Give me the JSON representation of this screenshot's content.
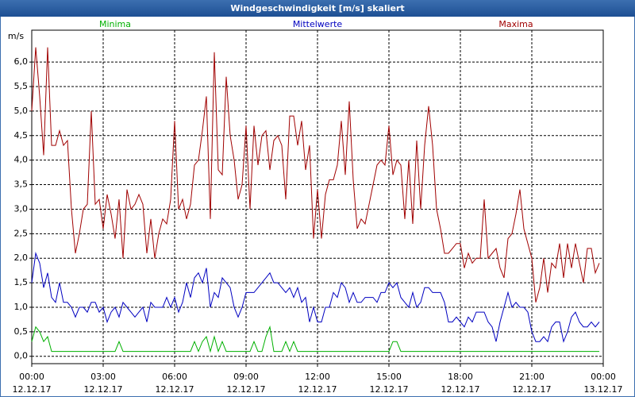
{
  "chart_data": {
    "type": "line",
    "title": "Windgeschwindigkeit [m/s] skaliert",
    "y_unit": "m/s",
    "x": [
      0,
      10,
      20,
      30,
      40,
      50,
      60,
      70,
      80,
      90,
      100,
      110,
      120,
      130,
      140,
      150,
      160,
      170,
      180,
      190,
      200,
      210,
      220,
      230,
      240,
      250,
      260,
      270,
      280,
      290,
      300,
      310,
      320,
      330,
      340,
      350,
      360,
      370,
      380,
      390,
      400,
      410,
      420,
      430,
      440,
      450,
      460,
      470,
      480,
      490,
      500,
      510,
      520,
      530,
      540,
      550,
      560,
      570,
      580,
      590,
      600,
      610,
      620,
      630,
      640,
      650,
      660,
      670,
      680,
      690,
      700,
      710,
      720,
      730,
      740,
      750,
      760,
      770,
      780,
      790,
      800,
      810,
      820,
      830,
      840,
      850,
      860,
      870,
      880,
      890,
      900,
      910,
      920,
      930,
      940,
      950,
      960,
      970,
      980,
      990,
      1000,
      1010,
      1020,
      1030,
      1040,
      1050,
      1060,
      1070,
      1080,
      1090,
      1100,
      1110,
      1120,
      1130,
      1140,
      1150,
      1160,
      1170,
      1180,
      1190,
      1200,
      1210,
      1220,
      1230,
      1240,
      1250,
      1260,
      1270,
      1280,
      1290,
      1300,
      1310,
      1320,
      1330,
      1340,
      1350,
      1360,
      1370,
      1380,
      1390,
      1400,
      1410,
      1420,
      1430
    ],
    "series": [
      {
        "name": "Minima",
        "color": "#00b000",
        "values": [
          0.3,
          0.6,
          0.5,
          0.3,
          0.4,
          0.1,
          0.1,
          0.1,
          0.1,
          0.1,
          0.1,
          0.1,
          0.1,
          0.1,
          0.1,
          0.1,
          0.1,
          0.1,
          0.1,
          0.1,
          0.1,
          0.1,
          0.3,
          0.1,
          0.1,
          0.1,
          0.1,
          0.1,
          0.1,
          0.1,
          0.1,
          0.1,
          0.1,
          0.1,
          0.1,
          0.1,
          0.1,
          0.1,
          0.1,
          0.1,
          0.1,
          0.3,
          0.1,
          0.3,
          0.4,
          0.1,
          0.4,
          0.1,
          0.3,
          0.1,
          0.1,
          0.1,
          0.1,
          0.1,
          0.1,
          0.1,
          0.3,
          0.1,
          0.1,
          0.4,
          0.6,
          0.1,
          0.1,
          0.1,
          0.3,
          0.1,
          0.3,
          0.1,
          0.1,
          0.1,
          0.1,
          0.1,
          0.1,
          0.1,
          0.1,
          0.1,
          0.1,
          0.1,
          0.1,
          0.1,
          0.1,
          0.1,
          0.1,
          0.1,
          0.1,
          0.1,
          0.1,
          0.1,
          0.1,
          0.1,
          0.1,
          0.3,
          0.3,
          0.1,
          0.1,
          0.1,
          0.1,
          0.1,
          0.1,
          0.1,
          0.1,
          0.1,
          0.1,
          0.1,
          0.1,
          0.1,
          0.1,
          0.1,
          0.1,
          0.1,
          0.1,
          0.1,
          0.1,
          0.1,
          0.1,
          0.1,
          0.1,
          0.1,
          0.1,
          0.1,
          0.1,
          0.1,
          0.1,
          0.1,
          0.1,
          0.1,
          0.1,
          0.1,
          0.1,
          0.1,
          0.1,
          0.1,
          0.1,
          0.1,
          0.1,
          0.1,
          0.1,
          0.1,
          0.1,
          0.1,
          0.1,
          0.1,
          0.1,
          0.1
        ]
      },
      {
        "name": "Mittelwerte",
        "color": "#0000c0",
        "values": [
          1.5,
          2.1,
          1.9,
          1.4,
          1.7,
          1.2,
          1.1,
          1.5,
          1.1,
          1.1,
          1.0,
          0.8,
          1.0,
          1.0,
          0.9,
          1.1,
          1.1,
          0.9,
          1.0,
          0.7,
          0.9,
          1.0,
          0.8,
          1.1,
          1.0,
          0.9,
          0.8,
          0.9,
          1.0,
          0.7,
          1.1,
          1.0,
          1.0,
          1.0,
          1.2,
          1.0,
          1.2,
          0.9,
          1.1,
          1.5,
          1.2,
          1.6,
          1.7,
          1.5,
          1.8,
          1.0,
          1.3,
          1.2,
          1.6,
          1.5,
          1.4,
          1.0,
          0.8,
          1.0,
          1.3,
          1.3,
          1.3,
          1.4,
          1.5,
          1.6,
          1.7,
          1.5,
          1.5,
          1.4,
          1.3,
          1.4,
          1.2,
          1.4,
          1.1,
          1.2,
          0.7,
          1.0,
          0.7,
          0.7,
          1.0,
          1.0,
          1.3,
          1.2,
          1.5,
          1.4,
          1.1,
          1.3,
          1.1,
          1.1,
          1.2,
          1.2,
          1.2,
          1.1,
          1.3,
          1.3,
          1.5,
          1.4,
          1.5,
          1.2,
          1.1,
          1.0,
          1.3,
          1.0,
          1.1,
          1.4,
          1.4,
          1.3,
          1.3,
          1.3,
          1.1,
          0.7,
          0.7,
          0.8,
          0.7,
          0.6,
          0.8,
          0.7,
          0.9,
          0.9,
          0.9,
          0.7,
          0.6,
          0.3,
          0.7,
          1.0,
          1.3,
          1.0,
          1.1,
          1.0,
          1.0,
          0.9,
          0.5,
          0.3,
          0.3,
          0.4,
          0.3,
          0.6,
          0.7,
          0.7,
          0.3,
          0.5,
          0.8,
          0.9,
          0.7,
          0.6,
          0.6,
          0.7,
          0.6,
          0.7
        ]
      },
      {
        "name": "Maxima",
        "color": "#a00000",
        "values": [
          5.0,
          6.3,
          5.3,
          4.1,
          6.3,
          4.3,
          4.3,
          4.6,
          4.3,
          4.4,
          3.0,
          2.1,
          2.5,
          3.0,
          3.1,
          5.0,
          3.1,
          3.2,
          2.6,
          3.3,
          2.9,
          2.4,
          3.2,
          2.0,
          3.4,
          3.0,
          3.1,
          3.3,
          3.1,
          2.1,
          2.8,
          2.0,
          2.5,
          2.8,
          2.7,
          3.2,
          4.8,
          3.0,
          3.2,
          2.8,
          3.1,
          3.9,
          4.0,
          4.6,
          5.3,
          2.8,
          6.2,
          3.8,
          3.7,
          5.7,
          4.5,
          4.0,
          3.2,
          3.5,
          4.7,
          3.0,
          4.7,
          3.9,
          4.5,
          4.6,
          3.8,
          4.4,
          4.5,
          4.3,
          3.2,
          4.9,
          4.9,
          4.3,
          4.8,
          3.8,
          4.3,
          2.4,
          3.4,
          2.4,
          3.3,
          3.6,
          3.6,
          3.9,
          4.8,
          3.7,
          5.2,
          3.6,
          2.6,
          2.8,
          2.7,
          3.1,
          3.5,
          3.9,
          4.0,
          3.9,
          4.7,
          3.7,
          4.0,
          3.9,
          2.8,
          4.0,
          2.7,
          4.4,
          3.0,
          4.3,
          5.1,
          4.3,
          3.0,
          2.6,
          2.1,
          2.1,
          2.2,
          2.3,
          2.3,
          1.8,
          2.1,
          1.9,
          2.0,
          2.0,
          3.2,
          2.0,
          2.1,
          2.2,
          1.8,
          1.6,
          2.4,
          2.5,
          2.9,
          3.4,
          2.6,
          2.3,
          2.0,
          1.1,
          1.4,
          2.0,
          1.3,
          1.9,
          1.8,
          2.3,
          1.6,
          2.3,
          1.8,
          2.3,
          1.9,
          1.5,
          2.2,
          2.2,
          1.7,
          1.9
        ]
      }
    ],
    "xlim": [
      0,
      1440
    ],
    "xticks": [
      {
        "value": 0,
        "label": "00:00"
      },
      {
        "value": 180,
        "label": "03:00"
      },
      {
        "value": 360,
        "label": "06:00"
      },
      {
        "value": 540,
        "label": "09:00"
      },
      {
        "value": 720,
        "label": "12:00"
      },
      {
        "value": 900,
        "label": "15:00"
      },
      {
        "value": 1080,
        "label": "18:00"
      },
      {
        "value": 1260,
        "label": "21:00"
      },
      {
        "value": 1440,
        "label": "00:00"
      }
    ],
    "xtick_dates": [
      "12.12.17",
      "12.12.17",
      "12.12.17",
      "12.12.17",
      "12.12.17",
      "12.12.17",
      "12.12.17",
      "12.12.17",
      "13.12.17"
    ],
    "ylim": [
      -0.15,
      6.65
    ],
    "yticks": [
      {
        "value": 0,
        "label": "0,0"
      },
      {
        "value": 0.5,
        "label": "0,5"
      },
      {
        "value": 1,
        "label": "1,0"
      },
      {
        "value": 1.5,
        "label": "1,5"
      },
      {
        "value": 2,
        "label": "2,0"
      },
      {
        "value": 2.5,
        "label": "2,5"
      },
      {
        "value": 3,
        "label": "3,0"
      },
      {
        "value": 3.5,
        "label": "3,5"
      },
      {
        "value": 4,
        "label": "4,0"
      },
      {
        "value": 4.5,
        "label": "4,5"
      },
      {
        "value": 5,
        "label": "5,0"
      },
      {
        "value": 5.5,
        "label": "5,5"
      },
      {
        "value": 6,
        "label": "6,0"
      }
    ],
    "grid": true
  }
}
